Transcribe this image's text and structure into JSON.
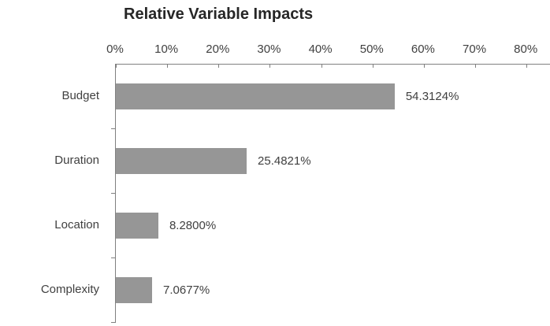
{
  "chart_data": {
    "type": "bar",
    "orientation": "horizontal",
    "title": "Relative Variable Impacts",
    "categories": [
      "Budget",
      "Duration",
      "Location",
      "Complexity"
    ],
    "values": [
      54.3124,
      25.4821,
      8.28,
      7.0677
    ],
    "data_labels": [
      "54.3124%",
      "25.4821%",
      "8.2800%",
      "7.0677%"
    ],
    "x_axis": {
      "position": "top",
      "min": 0,
      "max": 80,
      "tick_values": [
        0,
        10,
        20,
        30,
        40,
        50,
        60,
        70,
        80
      ],
      "tick_labels": [
        "0%",
        "10%",
        "20%",
        "30%",
        "40%",
        "50%",
        "60%",
        "70%",
        "80%"
      ]
    },
    "y_axis": {
      "categories_top_to_bottom": [
        "Budget",
        "Duration",
        "Location",
        "Complexity"
      ]
    },
    "legend": "none",
    "grid": false,
    "colors": {
      "bar_fill": "#969696",
      "axis_line": "#808080",
      "title_text": "#262626",
      "label_text": "#404040",
      "background": "#ffffff"
    }
  }
}
